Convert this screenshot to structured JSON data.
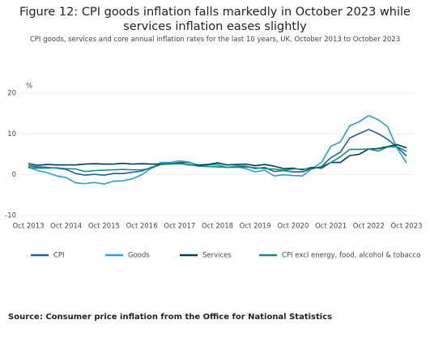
{
  "chart_data": {
    "type": "line",
    "title": "Figure 12: CPI goods inflation falls markedly in October 2023 while services inflation eases slightly",
    "subtitle": "CPI goods, services and core annual inflation rates for the last 10 years, UK, October 2013 to October 2023",
    "y_label": "%",
    "source": "Source: Consumer price inflation from the Office for National Statistics",
    "categories": [
      "Oct 2013",
      null,
      null,
      null,
      "Oct 2014",
      null,
      null,
      null,
      "Oct 2015",
      null,
      null,
      null,
      "Oct 2016",
      null,
      null,
      null,
      "Oct 2017",
      null,
      null,
      null,
      "Oct 2018",
      null,
      null,
      null,
      "Oct 2019",
      null,
      null,
      null,
      "Oct 2020",
      null,
      null,
      null,
      "Oct 2021",
      null,
      null,
      null,
      "Oct 2022",
      null,
      null,
      null,
      "Oct 2023"
    ],
    "ylim": [
      -10,
      20
    ],
    "yticks": [
      -10,
      0,
      10,
      20
    ],
    "grid": true,
    "legend": "bottom",
    "series": [
      {
        "name": "CPI",
        "color": "#206095",
        "values": [
          2.2,
          1.9,
          1.8,
          1.6,
          1.3,
          0.3,
          -0.1,
          0.1,
          -0.1,
          0.3,
          0.3,
          0.6,
          0.9,
          1.8,
          2.7,
          2.6,
          3.0,
          3.0,
          2.4,
          2.5,
          2.4,
          1.8,
          2.1,
          2.1,
          1.5,
          1.8,
          0.8,
          1.0,
          0.7,
          0.7,
          1.5,
          2.0,
          4.2,
          5.5,
          9.0,
          10.1,
          11.1,
          10.1,
          8.7,
          6.8,
          4.6
        ]
      },
      {
        "name": "Goods",
        "color": "#27a0cc",
        "values": [
          1.9,
          1.0,
          0.5,
          -0.3,
          -0.7,
          -2.0,
          -2.2,
          -1.9,
          -2.3,
          -1.6,
          -1.5,
          -1.0,
          0.0,
          1.6,
          3.0,
          3.0,
          3.4,
          3.1,
          2.2,
          2.4,
          2.5,
          1.8,
          2.0,
          1.5,
          0.7,
          1.1,
          -0.3,
          0.0,
          -0.2,
          -0.3,
          1.5,
          3.0,
          7.0,
          8.0,
          12.0,
          13.0,
          14.5,
          13.5,
          11.8,
          6.5,
          2.9
        ]
      },
      {
        "name": "Services",
        "color": "#003c57",
        "values": [
          2.7,
          2.3,
          2.5,
          2.4,
          2.4,
          2.4,
          2.6,
          2.7,
          2.6,
          2.6,
          2.8,
          2.6,
          2.7,
          2.6,
          2.6,
          2.7,
          2.8,
          2.4,
          2.3,
          2.5,
          2.9,
          2.4,
          2.5,
          2.6,
          2.2,
          2.5,
          2.1,
          1.5,
          1.6,
          1.2,
          1.8,
          1.6,
          3.0,
          3.0,
          4.7,
          5.0,
          6.3,
          6.4,
          6.9,
          7.4,
          6.6
        ]
      },
      {
        "name": "CPI excl energy, food, alcohol & tobacco",
        "color": "#118c7b",
        "values": [
          1.7,
          1.6,
          1.6,
          1.7,
          1.5,
          1.4,
          0.8,
          1.0,
          1.1,
          1.2,
          1.3,
          1.2,
          1.2,
          1.6,
          2.5,
          2.6,
          2.7,
          2.5,
          2.1,
          2.0,
          1.9,
          1.8,
          1.8,
          1.9,
          1.7,
          1.5,
          1.4,
          1.1,
          1.4,
          1.4,
          1.4,
          2.0,
          3.0,
          4.4,
          6.2,
          6.2,
          6.3,
          5.8,
          6.8,
          6.9,
          5.7
        ]
      }
    ]
  }
}
